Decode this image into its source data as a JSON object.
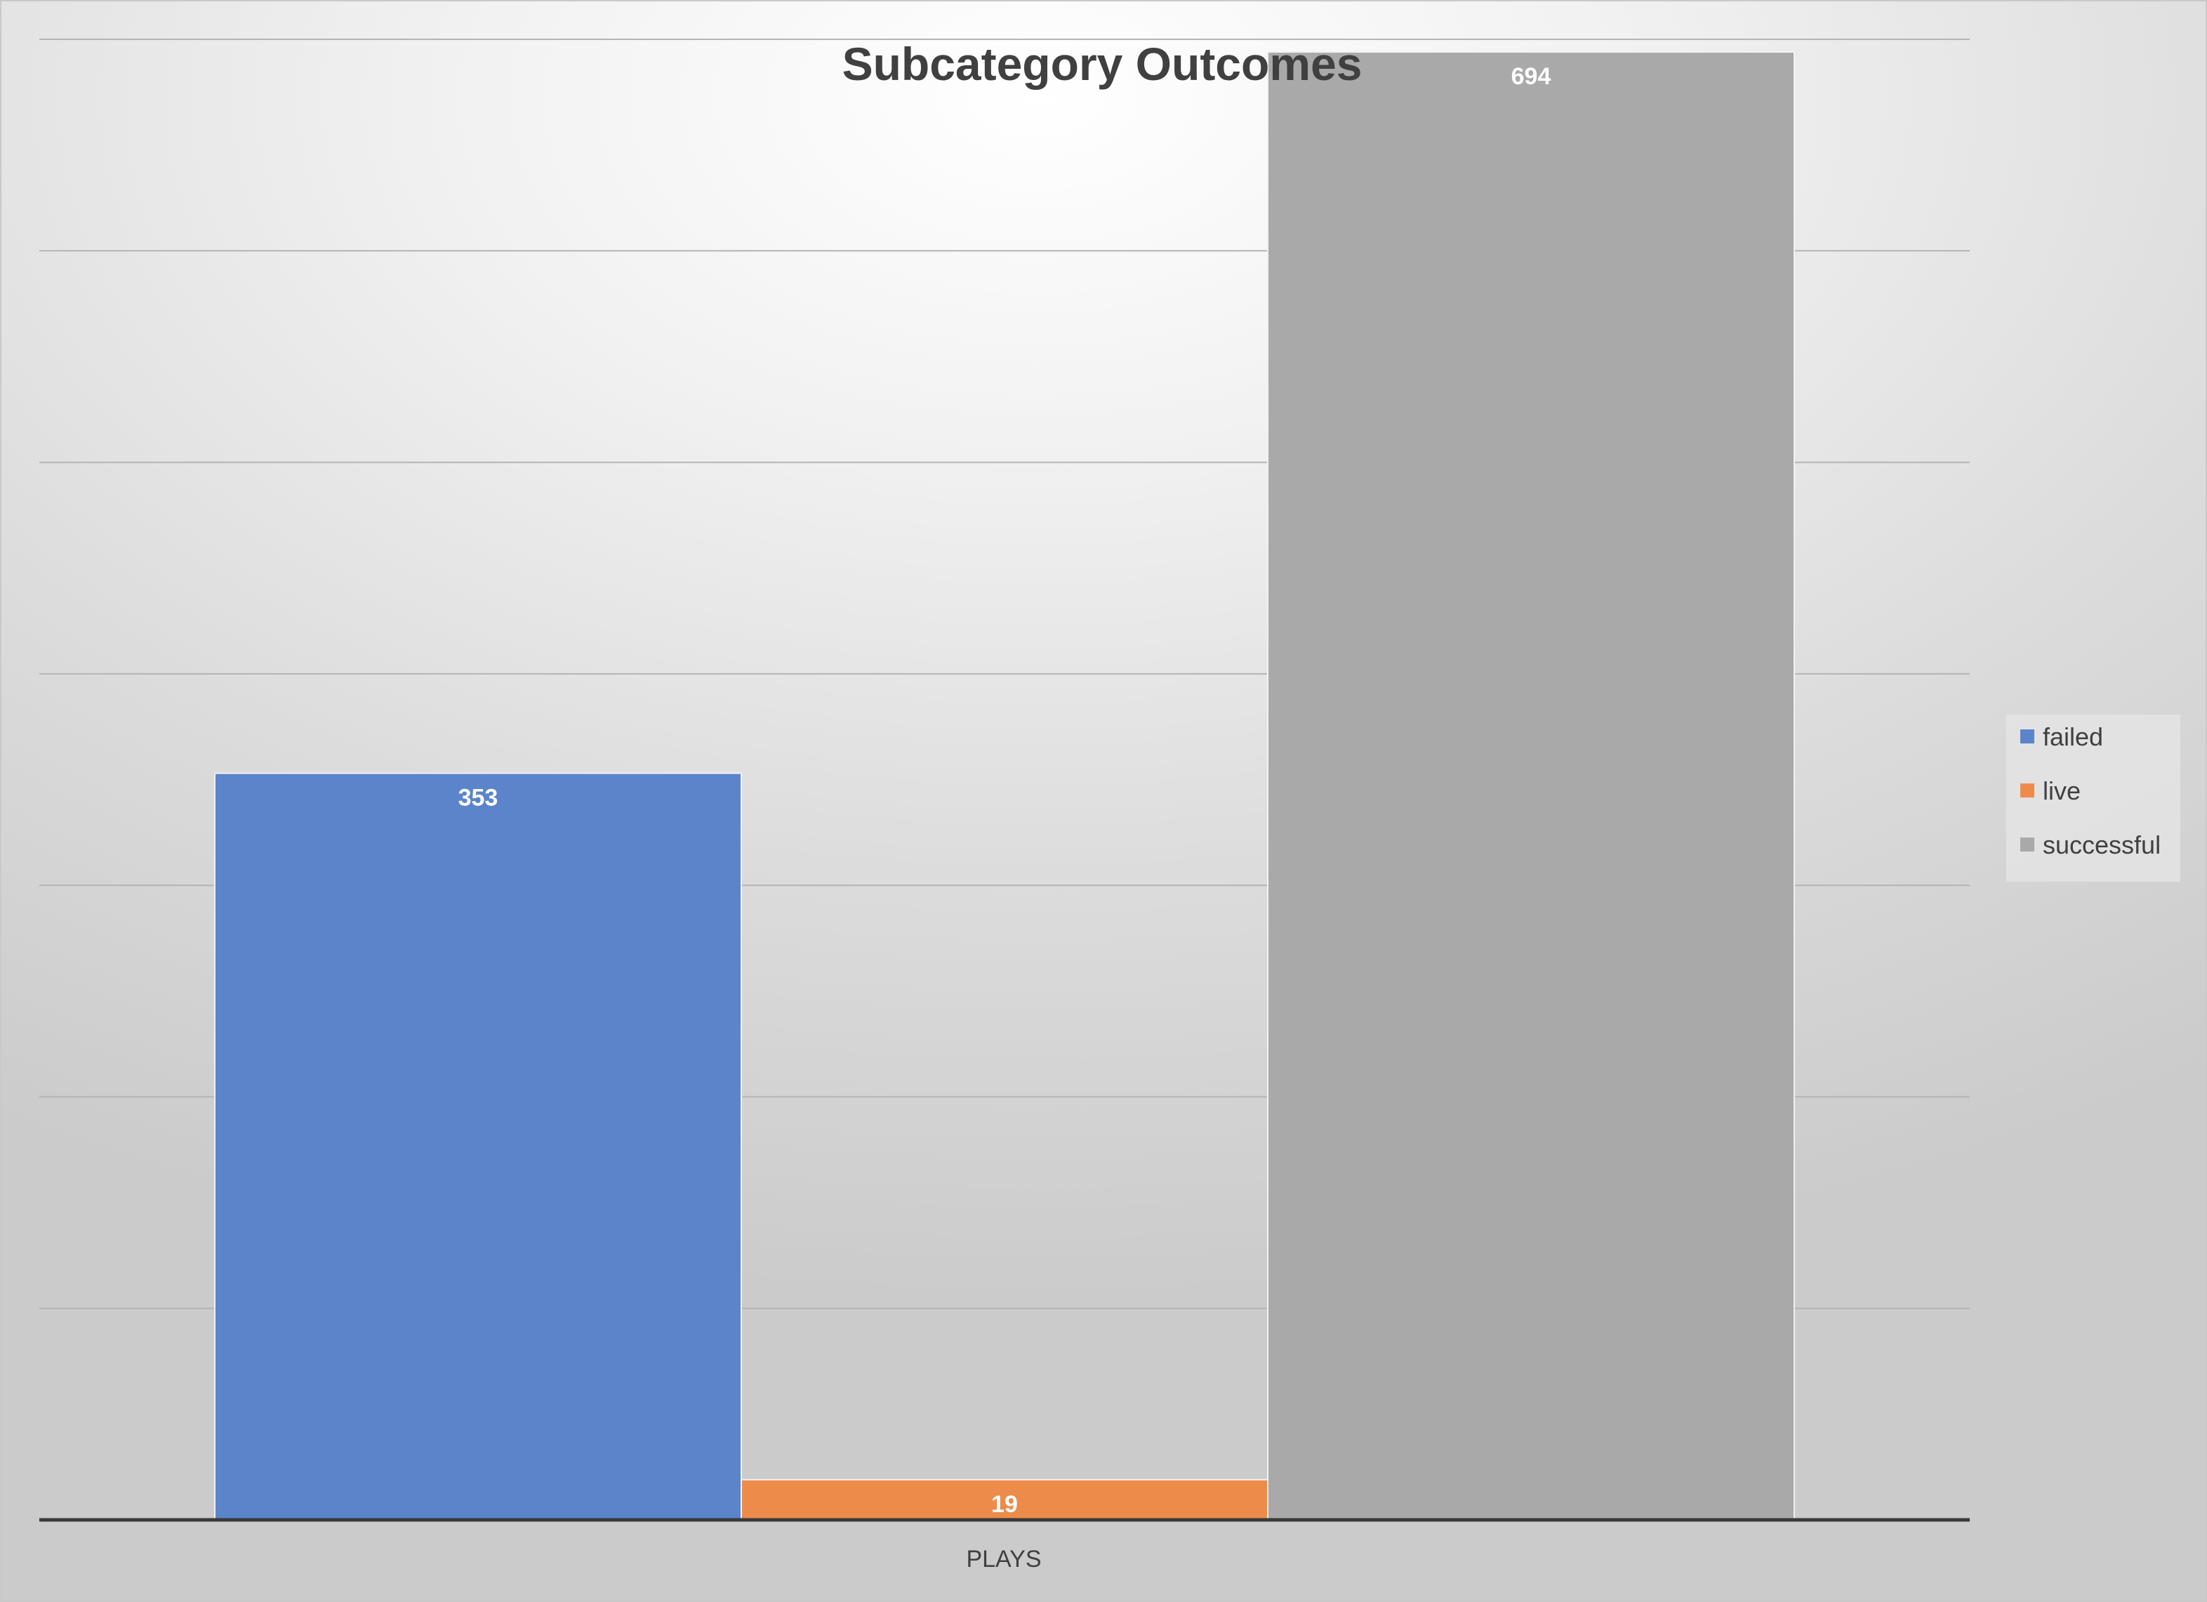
{
  "chart_data": {
    "type": "bar",
    "title": "Subcategory Outcomes",
    "categories": [
      "PLAYS"
    ],
    "series": [
      {
        "name": "failed",
        "values": [
          353
        ],
        "color": "#5b84cb"
      },
      {
        "name": "live",
        "values": [
          19
        ],
        "color": "#ed8c4a"
      },
      {
        "name": "successful",
        "values": [
          694
        ],
        "color": "#a9a9a9"
      }
    ],
    "ylim": [
      0,
      700
    ],
    "y_gridline_step": 100,
    "y_tick_labels_shown": false,
    "grid": true,
    "data_labels": true,
    "legend": {
      "position": "right",
      "entries": [
        "failed",
        "live",
        "successful"
      ]
    }
  }
}
